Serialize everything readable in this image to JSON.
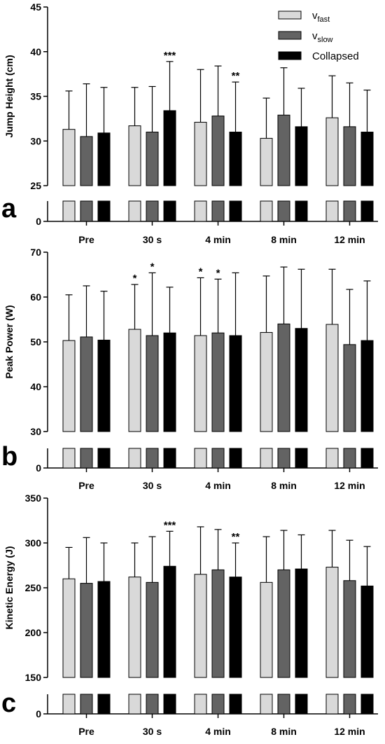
{
  "chart_data": [
    {
      "panel_letter": "a",
      "type": "bar",
      "ylabel": "Jump Height (cm)",
      "categories": [
        "Pre",
        "30 s",
        "4 min",
        "8 min",
        "12 min"
      ],
      "ylim": [
        25,
        45
      ],
      "yticks": [
        25,
        30,
        35,
        40,
        45
      ],
      "break_axis": {
        "lower_tick": 0
      },
      "legend": {
        "position": "top-right",
        "entries": [
          {
            "main": "v",
            "sub": "fast"
          },
          {
            "main": "v",
            "sub": "slow"
          },
          {
            "main": "Collapsed",
            "sub": ""
          }
        ]
      },
      "series": [
        {
          "values": [
            31.3,
            30.5,
            30.9,
            31.7,
            31.0
          ],
          "errors": [
            4.3,
            5.9,
            5.1,
            4.3,
            5.1
          ]
        },
        {
          "values": [
            33.4,
            32.1,
            32.8,
            31.0,
            30.3
          ],
          "errors": [
            5.5,
            5.9,
            5.6,
            5.6,
            4.5
          ]
        },
        {
          "values": [
            32.9,
            31.6,
            32.6,
            31.6,
            31.0
          ],
          "errors": [
            5.3,
            4.3,
            4.7,
            4.9,
            4.7
          ]
        }
      ],
      "significance": [
        {
          "category": 1,
          "series": 2,
          "label": "***"
        },
        {
          "category": 2,
          "series": 2,
          "label": "**"
        }
      ]
    },
    {
      "panel_letter": "b",
      "type": "bar",
      "ylabel": "Peak Power (W)",
      "categories": [
        "Pre",
        "30 s",
        "4 min",
        "8 min",
        "12 min"
      ],
      "ylim": [
        30,
        70
      ],
      "yticks": [
        30,
        40,
        50,
        60,
        70
      ],
      "break_axis": {
        "lower_tick": 0
      },
      "series": [
        {
          "values": [
            50.3,
            51.1,
            50.4,
            52.8,
            51.4
          ],
          "errors": [
            10.2,
            11.4,
            10.9,
            10.0,
            14.0
          ]
        },
        {
          "values": [
            52.0,
            51.4,
            52.0,
            51.4,
            52.1
          ],
          "errors": [
            10.2,
            12.9,
            12.0,
            14.0,
            12.6
          ]
        },
        {
          "values": [
            54.0,
            53.0,
            53.9,
            49.4,
            50.3
          ],
          "errors": [
            12.7,
            13.2,
            12.3,
            12.3,
            13.3
          ]
        }
      ],
      "significance": [
        {
          "category": 1,
          "series": 0,
          "label": "*"
        },
        {
          "category": 1,
          "series": 1,
          "label": "*"
        },
        {
          "category": 2,
          "series": 0,
          "label": "*"
        },
        {
          "category": 2,
          "series": 1,
          "label": "*"
        }
      ]
    },
    {
      "panel_letter": "c",
      "type": "bar",
      "ylabel": "Kinetic Energy (J)",
      "categories": [
        "Pre",
        "30 s",
        "4 min",
        "8 min",
        "12 min"
      ],
      "ylim": [
        150,
        350
      ],
      "yticks": [
        150,
        200,
        250,
        300,
        350
      ],
      "break_axis": {
        "lower_tick": 0
      },
      "series": [
        {
          "values": [
            260,
            255,
            257,
            262,
            256
          ],
          "errors": [
            35,
            51,
            43,
            38,
            51
          ]
        },
        {
          "values": [
            274,
            265,
            270,
            262,
            256
          ],
          "errors": [
            39,
            53,
            45,
            38,
            51
          ]
        },
        {
          "values": [
            270,
            271,
            273,
            258,
            252
          ],
          "errors": [
            44,
            38,
            41,
            45,
            44
          ]
        }
      ],
      "significance": [
        {
          "category": 1,
          "series": 2,
          "label": "***"
        },
        {
          "category": 2,
          "series": 2,
          "label": "**"
        }
      ]
    }
  ]
}
